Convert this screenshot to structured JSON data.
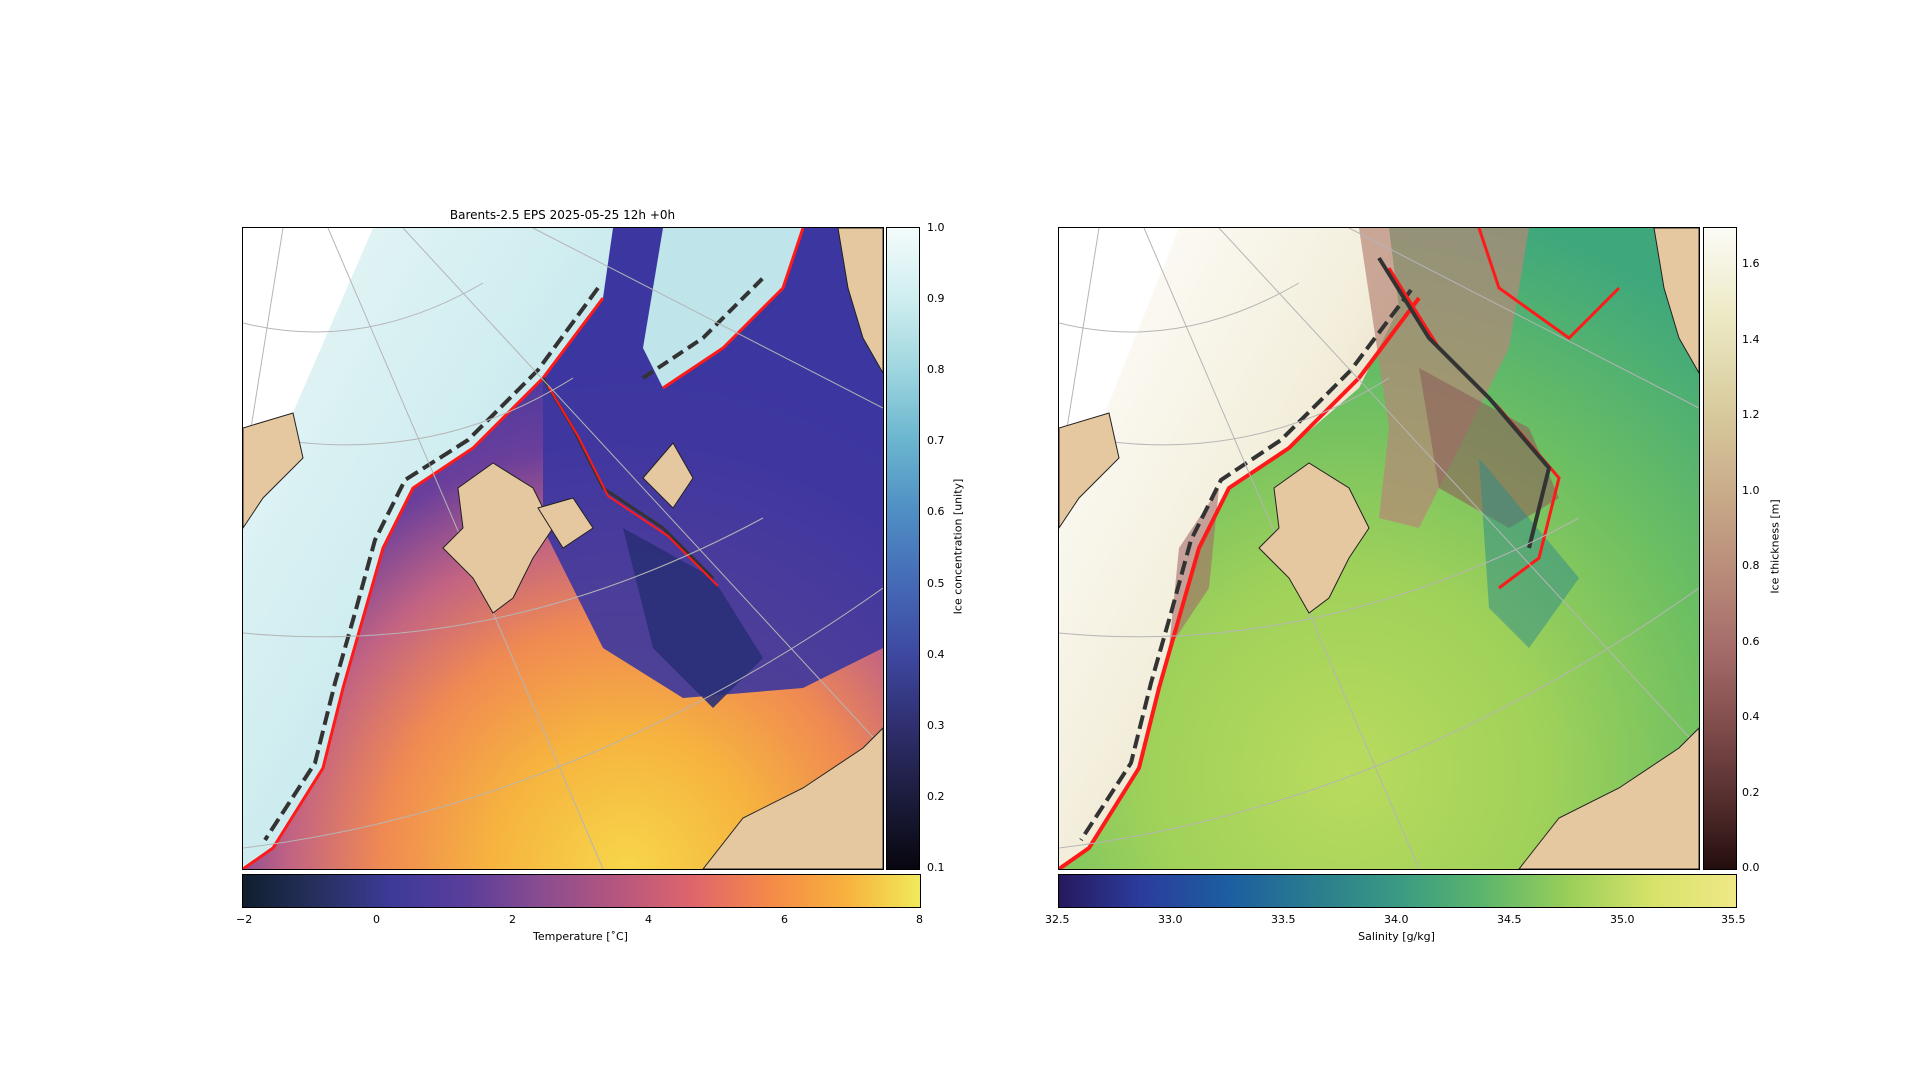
{
  "figure": {
    "title": "Barents-2.5 EPS 2025-05-25 12h +0h"
  },
  "left_panel": {
    "ice_colorbar": {
      "label": "Ice concentration [unity]",
      "ticks": [
        "1.0",
        "0.9",
        "0.8",
        "0.7",
        "0.6",
        "0.5",
        "0.4",
        "0.3",
        "0.2",
        "0.1"
      ],
      "colors": [
        "#f4fbfb",
        "#cfeef0",
        "#9fd6df",
        "#6bb6cf",
        "#4f8fc4",
        "#4468b6",
        "#3d479f",
        "#2f2e6e",
        "#1b1c3c",
        "#08060f"
      ]
    },
    "temp_colorbar": {
      "label": "Temperature [˚C]",
      "ticks": [
        "−2",
        "0",
        "2",
        "4",
        "6",
        "8"
      ],
      "colors": [
        "#0f1f2e",
        "#27305e",
        "#3d3a99",
        "#5a3e9a",
        "#8a4c90",
        "#b8577d",
        "#e0676a",
        "#f58a48",
        "#f8b13e",
        "#f0ea5a"
      ]
    }
  },
  "right_panel": {
    "thick_colorbar": {
      "label": "Ice thickness [m]",
      "ticks": [
        "1.6",
        "1.4",
        "1.2",
        "1.0",
        "0.8",
        "0.6",
        "0.4",
        "0.2",
        "0.0"
      ],
      "colors": [
        "#fcfbf6",
        "#ece9c4",
        "#d9cc9e",
        "#c8aa88",
        "#b78878",
        "#a46b69",
        "#7f4b4b",
        "#522c2c",
        "#240d0d"
      ]
    },
    "sal_colorbar": {
      "label": "Salinity [g/kg]",
      "ticks": [
        "32.5",
        "33.0",
        "33.5",
        "34.0",
        "34.5",
        "35.0",
        "35.5"
      ],
      "colors": [
        "#26195e",
        "#2b3c9c",
        "#1c5ea0",
        "#2b7d8e",
        "#3a9a83",
        "#59b46d",
        "#98ce5a",
        "#d8e36a",
        "#efe887"
      ]
    }
  },
  "colors": {
    "land": "#e6c8a0",
    "ice_edge_contour": "#ff1a1a",
    "thickness_contour": "#333333",
    "graticule": "#b5b5b5"
  }
}
